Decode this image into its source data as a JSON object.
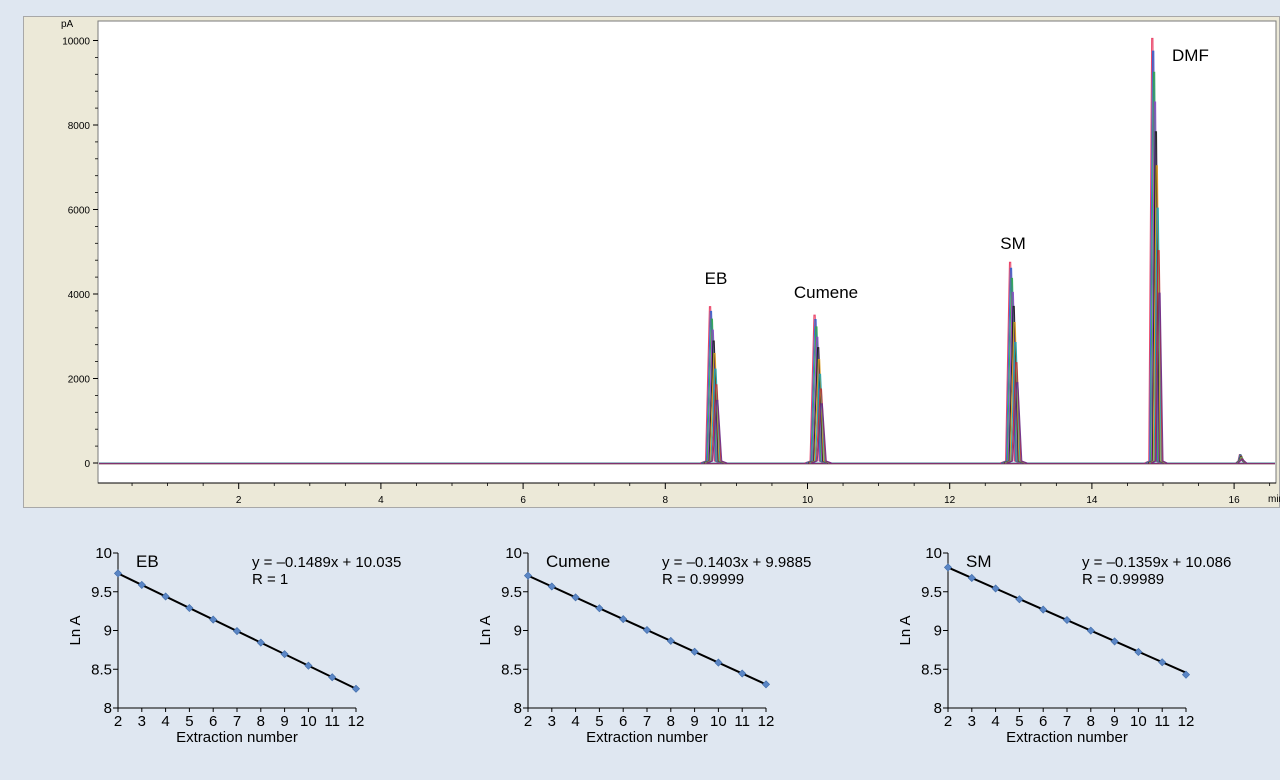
{
  "chromatogram": {
    "y_unit": "pA",
    "x_unit": "min",
    "y_ticks": [
      "0",
      "2000",
      "4000",
      "6000",
      "8000",
      "10000"
    ],
    "x_ticks": [
      "2",
      "4",
      "6",
      "8",
      "10",
      "12",
      "14",
      "16"
    ],
    "peak_labels": [
      "EB",
      "Cumene",
      "SM",
      "DMF"
    ]
  },
  "chart_data": [
    {
      "type": "line",
      "title": "",
      "xlabel": "min",
      "ylabel": "pA",
      "xlim": [
        0,
        17.3
      ],
      "ylim": [
        -500,
        10500
      ],
      "peaks": [
        {
          "name": "EB",
          "x": 8.68,
          "y": 3700
        },
        {
          "name": "Cumene",
          "x": 10.15,
          "y": 3500
        },
        {
          "name": "SM",
          "x": 12.9,
          "y": 4750
        },
        {
          "name": "DMF",
          "x": 14.9,
          "y": 10050
        },
        {
          "name": "",
          "x": 16.1,
          "y": 200
        }
      ],
      "overlay_colors": [
        "#e8325a",
        "#2b5fd0",
        "#2ba84a",
        "#8b46c8",
        "#1a1a1a",
        "#d99a1c",
        "#18a5b5",
        "#c03030",
        "#6a2a8a"
      ]
    },
    {
      "type": "scatter",
      "title": "EB",
      "xlabel": "Extraction number",
      "ylabel": "Ln A",
      "xlim": [
        2,
        12
      ],
      "ylim": [
        8,
        10
      ],
      "x": [
        2,
        3,
        4,
        5,
        6,
        7,
        8,
        9,
        10,
        11,
        12
      ],
      "y": [
        9.737,
        9.588,
        9.439,
        9.29,
        9.141,
        8.993,
        8.844,
        8.695,
        8.546,
        8.397,
        8.248
      ],
      "trendline": {
        "slope": -0.1489,
        "intercept": 10.035
      },
      "equation": "y = –0.1489x + 10.035",
      "r_text": "R = 1"
    },
    {
      "type": "scatter",
      "title": "Cumene",
      "xlabel": "Extraction number",
      "ylabel": "Ln A",
      "xlim": [
        2,
        12
      ],
      "ylim": [
        8,
        10
      ],
      "x": [
        2,
        3,
        4,
        5,
        6,
        7,
        8,
        9,
        10,
        11,
        12
      ],
      "y": [
        9.708,
        9.568,
        9.427,
        9.287,
        9.147,
        9.006,
        8.866,
        8.726,
        8.586,
        8.445,
        8.305
      ],
      "trendline": {
        "slope": -0.1403,
        "intercept": 9.9885
      },
      "equation": "y = –0.1403x + 9.9885",
      "r_text": "R = 0.99999"
    },
    {
      "type": "scatter",
      "title": "SM",
      "xlabel": "Extraction number",
      "ylabel": "Ln A",
      "xlim": [
        2,
        12
      ],
      "ylim": [
        8,
        10
      ],
      "x": [
        2,
        3,
        4,
        5,
        6,
        7,
        8,
        9,
        10,
        11,
        12
      ],
      "y": [
        9.814,
        9.678,
        9.542,
        9.403,
        9.27,
        9.135,
        8.998,
        8.859,
        8.723,
        8.59,
        8.43
      ],
      "trendline": {
        "slope": -0.1359,
        "intercept": 10.086
      },
      "equation": "y = –0.1359x + 10.086",
      "r_text": "R = 0.99989"
    }
  ],
  "colors": {
    "background": "#dfe7f1",
    "chrom_panel": "#ece9d8",
    "marker": "#5b86c5",
    "trendline": "#000000"
  }
}
